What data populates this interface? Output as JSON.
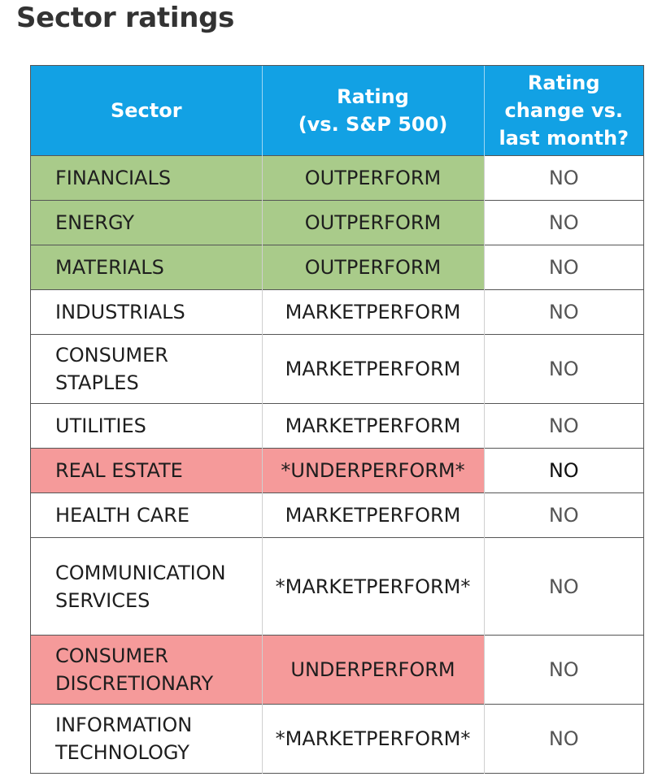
{
  "title": "Sector ratings",
  "table": {
    "headers": {
      "sector": "Sector",
      "rating_line1": "Rating",
      "rating_line2": "(vs. S&P 500)",
      "change_line1": "Rating",
      "change_line2": "change vs.",
      "change_line3": "last month?"
    },
    "rows": [
      {
        "sector_line1": "FINANCIALS",
        "sector_line2": "",
        "rating": "OUTPERFORM",
        "change": "NO",
        "status": "outperform"
      },
      {
        "sector_line1": "ENERGY",
        "sector_line2": "",
        "rating": "OUTPERFORM",
        "change": "NO",
        "status": "outperform"
      },
      {
        "sector_line1": "MATERIALS",
        "sector_line2": "",
        "rating": "OUTPERFORM",
        "change": "NO",
        "status": "outperform"
      },
      {
        "sector_line1": "INDUSTRIALS",
        "sector_line2": "",
        "rating": "MARKETPERFORM",
        "change": "NO",
        "status": "marketperform"
      },
      {
        "sector_line1": "CONSUMER",
        "sector_line2": "STAPLES",
        "rating": "MARKETPERFORM",
        "change": "NO",
        "status": "marketperform"
      },
      {
        "sector_line1": "UTILITIES",
        "sector_line2": "",
        "rating": "MARKETPERFORM",
        "change": "NO",
        "status": "marketperform"
      },
      {
        "sector_line1": "REAL ESTATE",
        "sector_line2": "",
        "rating": "*UNDERPERFORM*",
        "change": "NO",
        "status": "underperform"
      },
      {
        "sector_line1": "HEALTH CARE",
        "sector_line2": "",
        "rating": "MARKETPERFORM",
        "change": "NO",
        "status": "marketperform"
      },
      {
        "sector_line1": "COMMUNICATION",
        "sector_line2": "SERVICES",
        "rating": "*MARKETPERFORM*",
        "change": "NO",
        "status": "marketperform"
      },
      {
        "sector_line1": "CONSUMER",
        "sector_line2": "DISCRETIONARY",
        "rating": "UNDERPERFORM",
        "change": "NO",
        "status": "underperform"
      },
      {
        "sector_line1": "INFORMATION",
        "sector_line2": "TECHNOLOGY",
        "rating": "*MARKETPERFORM*",
        "change": "NO",
        "status": "marketperform"
      }
    ]
  },
  "colors": {
    "header_bg": "#12a1e4",
    "outperform_bg": "#a9cb8a",
    "underperform_bg": "#f59a9a"
  }
}
